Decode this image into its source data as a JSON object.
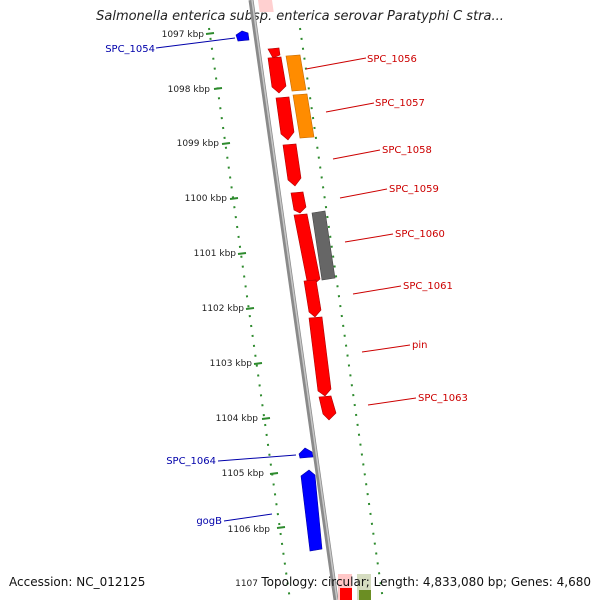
{
  "title": "Salmonella enterica subsp. enterica serovar Paratyphi C stra...",
  "footer": {
    "accession": "Accession: NC_012125",
    "topology": "Topology: circular; Length: 4,833,080 bp; Genes: 4,680"
  },
  "colors": {
    "backbone": "#8a8a8a",
    "tick": "#2e8b2e",
    "forward_gene": "#ff0000",
    "reverse_gene": "#0000ff",
    "orange_gene": "#ff8c00",
    "gray_gene": "#666666",
    "forward_label": "#cc0000",
    "reverse_label": "#0000aa"
  },
  "kbp_ticks": [
    "1097 kbp",
    "1098 kbp",
    "1099 kbp",
    "1100 kbp",
    "1101 kbp",
    "1102 kbp",
    "1103 kbp",
    "1104 kbp",
    "1105 kbp",
    "1106 kbp",
    "1107"
  ],
  "gene_labels": {
    "right": [
      "SPC_1056",
      "SPC_1057",
      "SPC_1058",
      "SPC_1059",
      "SPC_1060",
      "SPC_1061",
      "pin",
      "SPC_1063"
    ],
    "left": [
      "SPC_1054",
      "SPC_1064",
      "gogB"
    ]
  }
}
